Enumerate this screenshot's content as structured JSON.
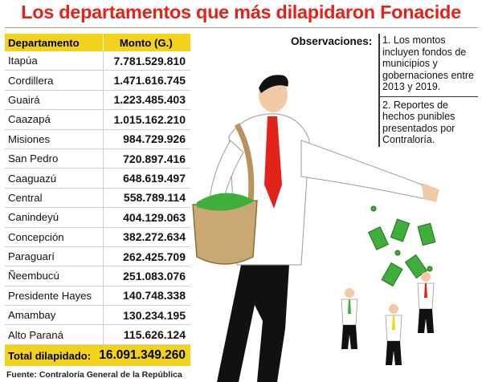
{
  "title": "Los departamentos que más dilapidaron Fonacide",
  "table": {
    "col_department": "Departamento",
    "col_amount": "Monto (G.)",
    "rows": [
      {
        "department": "Itapúa",
        "amount": "7.781.529.810"
      },
      {
        "department": "Cordillera",
        "amount": "1.471.616.745"
      },
      {
        "department": "Guairá",
        "amount": "1.223.485.403"
      },
      {
        "department": "Caazapá",
        "amount": "1.015.162.210"
      },
      {
        "department": "Misiones",
        "amount": "984.729.926"
      },
      {
        "department": "San Pedro",
        "amount": "720.897.416"
      },
      {
        "department": "Caaguazú",
        "amount": "648.619.497"
      },
      {
        "department": "Central",
        "amount": "558.789.114"
      },
      {
        "department": "Canindeyú",
        "amount": "404.129.063"
      },
      {
        "department": "Concepción",
        "amount": "382.272.634"
      },
      {
        "department": "Paraguarí",
        "amount": "262.425.709"
      },
      {
        "department": "Ñeembucú",
        "amount": "251.083.076"
      },
      {
        "department": "Presidente Hayes",
        "amount": "140.748.338"
      },
      {
        "department": "Amambay",
        "amount": "130.234.195"
      },
      {
        "department": "Alto Paraná",
        "amount": "115.626.124"
      }
    ],
    "total_label": "Total dilapidado:",
    "total_value": "16.091.349.260"
  },
  "source": "Fuente: Contraloría General de la República",
  "observations": {
    "label": "Observaciones:",
    "notes": [
      "1. Los montos incluyen fondos de municipios y gobernaciones entre 2013 y 2019.",
      "2. Reportes de hechos punibles presentados por Contraloría."
    ]
  },
  "illustration": {
    "icons": [
      "businessman-icon",
      "money-bag-icon",
      "banknote-icon",
      "small-people-icon"
    ],
    "colors": {
      "tie": "#e2231a",
      "money": "#3fae3a",
      "bag": "#c9a873",
      "suit": "#111111"
    }
  }
}
